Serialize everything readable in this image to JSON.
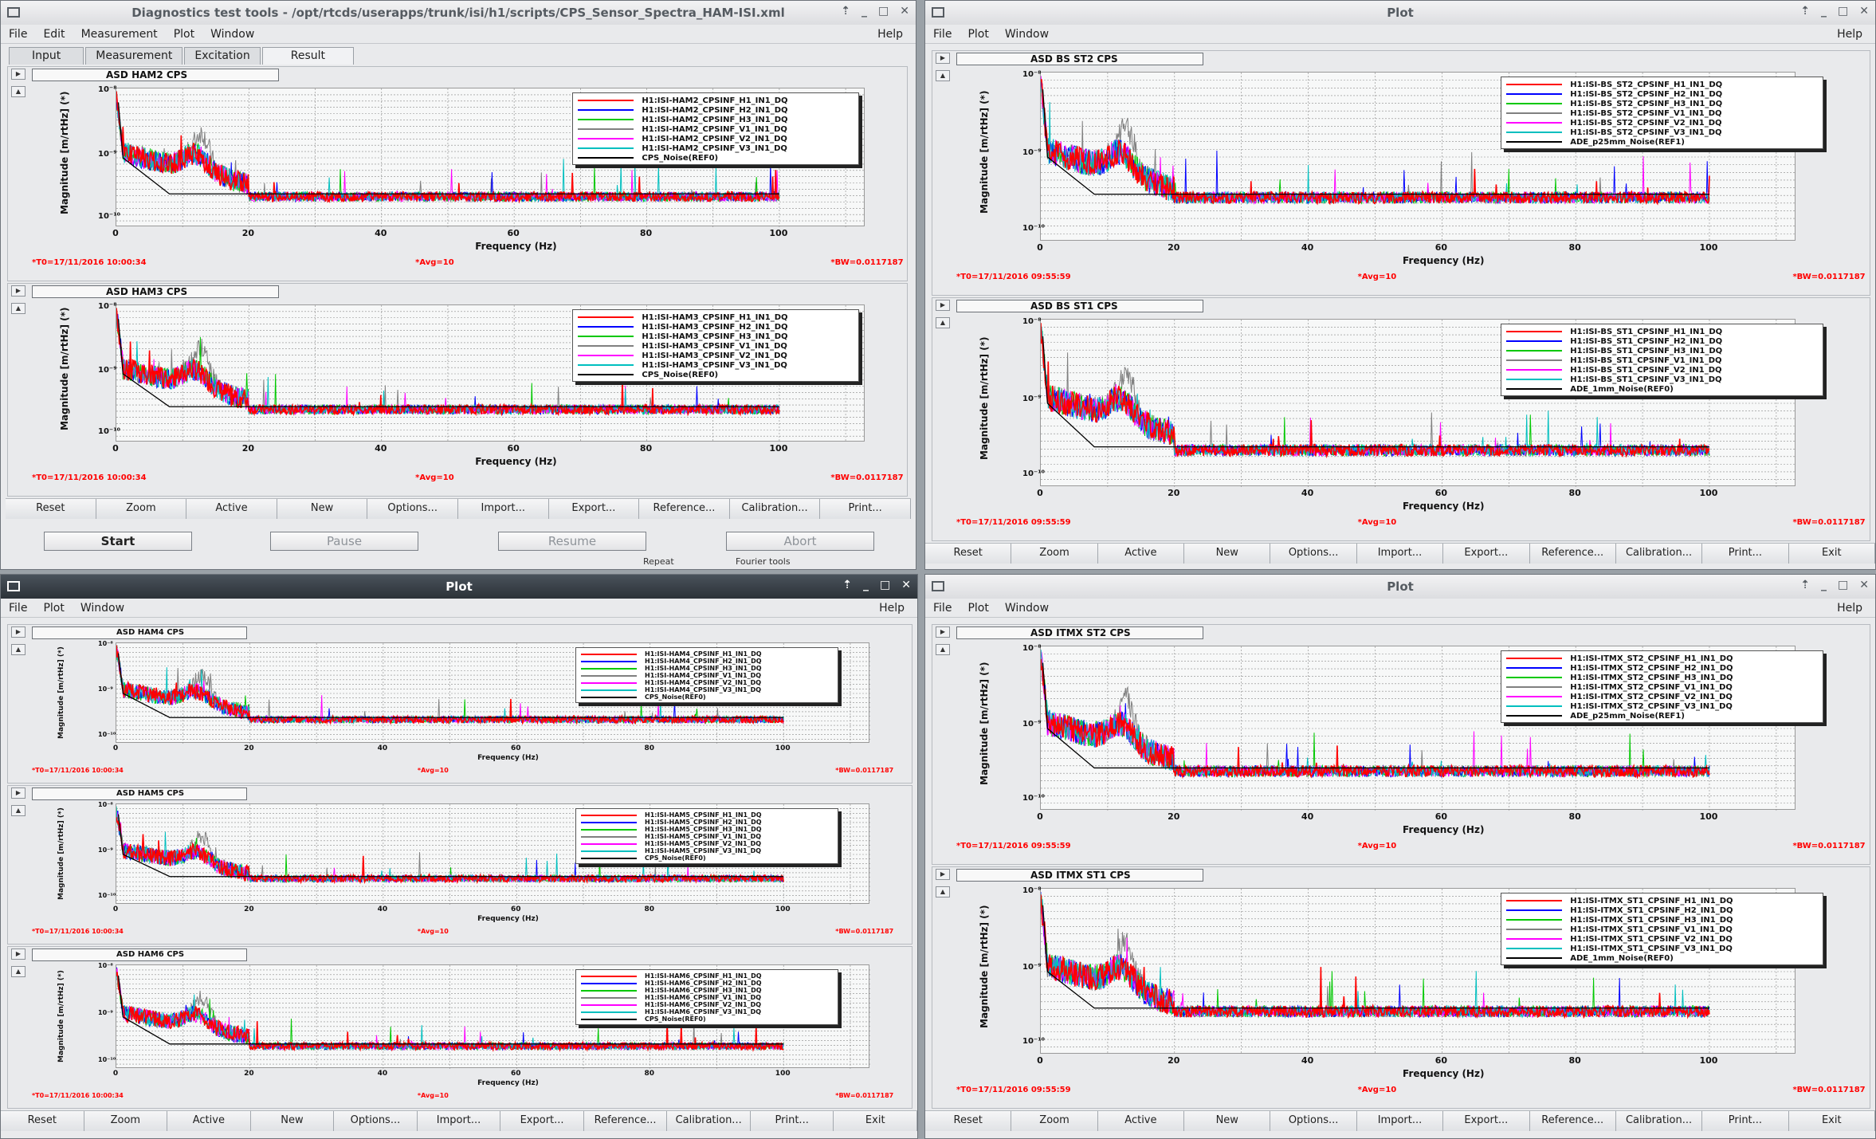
{
  "windows": {
    "dtt": {
      "title": "Diagnostics test tools - /opt/rtcds/userapps/trunk/isi/h1/scripts/CPS_Sensor_Spectra_HAM-ISI.xml",
      "menus": [
        "File",
        "Edit",
        "Measurement",
        "Plot",
        "Window"
      ],
      "help": "Help",
      "tabs": [
        "Input",
        "Measurement",
        "Excitation",
        "Result"
      ],
      "controls": {
        "start": "Start",
        "pause": "Pause",
        "resume": "Resume",
        "abort": "Abort"
      },
      "status": {
        "repeat": "Repeat",
        "fourier": "Fourier tools"
      }
    },
    "plot_tr": {
      "title": "Plot",
      "menus": [
        "File",
        "Plot",
        "Window"
      ],
      "help": "Help"
    },
    "plot_bl": {
      "title": "Plot",
      "menus": [
        "File",
        "Plot",
        "Window"
      ],
      "help": "Help"
    },
    "plot_br": {
      "title": "Plot",
      "menus": [
        "File",
        "Plot",
        "Window"
      ],
      "help": "Help"
    }
  },
  "buttons": {
    "reset": "Reset",
    "zoom": "Zoom",
    "active": "Active",
    "new": "New",
    "options": "Options...",
    "import": "Import...",
    "export": "Export...",
    "reference": "Reference...",
    "calibration": "Calibration...",
    "print": "Print...",
    "exit": "Exit"
  },
  "colors": {
    "series": [
      "#ff0000",
      "#0000ff",
      "#00c800",
      "#808080",
      "#ff00ff",
      "#00bfbf",
      "#000000"
    ],
    "info_text": "#ff0000"
  },
  "chart_data": [
    {
      "id": "ham2",
      "type": "line",
      "title": "ASD HAM2 CPS",
      "xlabel": "Frequency (Hz)",
      "ylabel": "Magnitude [m/rtHz] (*)",
      "xticks": [
        "0",
        "20",
        "40",
        "60",
        "80",
        "100"
      ],
      "yticks": [
        "10⁻⁸",
        "10⁻⁹",
        "10⁻¹⁰"
      ],
      "xlim": [
        0,
        100
      ],
      "series": [
        "H1:ISI-HAM2_CPSINF_H1_IN1_DQ",
        "H1:ISI-HAM2_CPSINF_H2_IN1_DQ",
        "H1:ISI-HAM2_CPSINF_H3_IN1_DQ",
        "H1:ISI-HAM2_CPSINF_V1_IN1_DQ",
        "H1:ISI-HAM2_CPSINF_V2_IN1_DQ",
        "H1:ISI-HAM2_CPSINF_V3_IN1_DQ",
        "CPS_Noise(REF0)"
      ],
      "t0": "*T0=17/11/2016 10:00:34",
      "avg": "*Avg=10",
      "bw": "*BW=0.0117187"
    },
    {
      "id": "ham3",
      "type": "line",
      "title": "ASD HAM3 CPS",
      "xlabel": "Frequency (Hz)",
      "ylabel": "Magnitude [m/rtHz] (*)",
      "xticks": [
        "0",
        "20",
        "40",
        "60",
        "80",
        "100"
      ],
      "yticks": [
        "10⁻⁸",
        "10⁻⁹",
        "10⁻¹⁰"
      ],
      "xlim": [
        0,
        100
      ],
      "series": [
        "H1:ISI-HAM3_CPSINF_H1_IN1_DQ",
        "H1:ISI-HAM3_CPSINF_H2_IN1_DQ",
        "H1:ISI-HAM3_CPSINF_H3_IN1_DQ",
        "H1:ISI-HAM3_CPSINF_V1_IN1_DQ",
        "H1:ISI-HAM3_CPSINF_V2_IN1_DQ",
        "H1:ISI-HAM3_CPSINF_V3_IN1_DQ",
        "CPS_Noise(REF0)"
      ],
      "t0": "*T0=17/11/2016 10:00:34",
      "avg": "*Avg=10",
      "bw": "*BW=0.0117187"
    },
    {
      "id": "bsst2",
      "type": "line",
      "title": "ASD BS ST2 CPS",
      "xlabel": "Frequency (Hz)",
      "ylabel": "Magnitude [m/rtHz] (*)",
      "xticks": [
        "0",
        "20",
        "40",
        "60",
        "80",
        "100"
      ],
      "yticks": [
        "10⁻⁸",
        "10⁻⁹",
        "10⁻¹⁰"
      ],
      "xlim": [
        0,
        100
      ],
      "series": [
        "H1:ISI-BS_ST2_CPSINF_H1_IN1_DQ",
        "H1:ISI-BS_ST2_CPSINF_H2_IN1_DQ",
        "H1:ISI-BS_ST2_CPSINF_H3_IN1_DQ",
        "H1:ISI-BS_ST2_CPSINF_V1_IN1_DQ",
        "H1:ISI-BS_ST2_CPSINF_V2_IN1_DQ",
        "H1:ISI-BS_ST2_CPSINF_V3_IN1_DQ",
        "ADE_p25mm_Noise(REF1)"
      ],
      "t0": "*T0=17/11/2016 09:55:59",
      "avg": "*Avg=10",
      "bw": "*BW=0.0117187"
    },
    {
      "id": "bsst1",
      "type": "line",
      "title": "ASD BS ST1 CPS",
      "xlabel": "Frequency (Hz)",
      "ylabel": "Magnitude [m/rtHz] (*)",
      "xticks": [
        "0",
        "20",
        "40",
        "60",
        "80",
        "100"
      ],
      "yticks": [
        "10⁻⁸",
        "10⁻⁹",
        "10⁻¹⁰"
      ],
      "xlim": [
        0,
        100
      ],
      "series": [
        "H1:ISI-BS_ST1_CPSINF_H1_IN1_DQ",
        "H1:ISI-BS_ST1_CPSINF_H2_IN1_DQ",
        "H1:ISI-BS_ST1_CPSINF_H3_IN1_DQ",
        "H1:ISI-BS_ST1_CPSINF_V1_IN1_DQ",
        "H1:ISI-BS_ST1_CPSINF_V2_IN1_DQ",
        "H1:ISI-BS_ST1_CPSINF_V3_IN1_DQ",
        "ADE_1mm_Noise(REF0)"
      ],
      "t0": "*T0=17/11/2016 09:55:59",
      "avg": "*Avg=10",
      "bw": "*BW=0.0117187"
    },
    {
      "id": "ham4",
      "type": "line",
      "title": "ASD HAM4 CPS",
      "xlabel": "Frequency (Hz)",
      "ylabel": "Magnitude [m/rtHz] (*)",
      "xticks": [
        "0",
        "20",
        "40",
        "60",
        "80",
        "100"
      ],
      "yticks": [
        "10⁻⁸",
        "10⁻⁹",
        "10⁻¹⁰"
      ],
      "xlim": [
        0,
        100
      ],
      "series": [
        "H1:ISI-HAM4_CPSINF_H1_IN1_DQ",
        "H1:ISI-HAM4_CPSINF_H2_IN1_DQ",
        "H1:ISI-HAM4_CPSINF_H3_IN1_DQ",
        "H1:ISI-HAM4_CPSINF_V1_IN1_DQ",
        "H1:ISI-HAM4_CPSINF_V2_IN1_DQ",
        "H1:ISI-HAM4_CPSINF_V3_IN1_DQ",
        "CPS_Noise(REF0)"
      ],
      "t0": "*T0=17/11/2016 10:00:34",
      "avg": "*Avg=10",
      "bw": "*BW=0.0117187"
    },
    {
      "id": "ham5",
      "type": "line",
      "title": "ASD HAM5 CPS",
      "xlabel": "Frequency (Hz)",
      "ylabel": "Magnitude [m/rtHz] (*)",
      "xticks": [
        "0",
        "20",
        "40",
        "60",
        "80",
        "100"
      ],
      "yticks": [
        "10⁻⁸",
        "10⁻⁹",
        "10⁻¹⁰"
      ],
      "xlim": [
        0,
        100
      ],
      "series": [
        "H1:ISI-HAM5_CPSINF_H1_IN1_DQ",
        "H1:ISI-HAM5_CPSINF_H2_IN1_DQ",
        "H1:ISI-HAM5_CPSINF_H3_IN1_DQ",
        "H1:ISI-HAM5_CPSINF_V1_IN1_DQ",
        "H1:ISI-HAM5_CPSINF_V2_IN1_DQ",
        "H1:ISI-HAM5_CPSINF_V3_IN1_DQ",
        "CPS_Noise(REF0)"
      ],
      "t0": "*T0=17/11/2016 10:00:34",
      "avg": "*Avg=10",
      "bw": "*BW=0.0117187"
    },
    {
      "id": "ham6",
      "type": "line",
      "title": "ASD HAM6 CPS",
      "xlabel": "Frequency (Hz)",
      "ylabel": "Magnitude [m/rtHz] (*)",
      "xticks": [
        "0",
        "20",
        "40",
        "60",
        "80",
        "100"
      ],
      "yticks": [
        "10⁻⁸",
        "10⁻⁹",
        "10⁻¹⁰"
      ],
      "xlim": [
        0,
        100
      ],
      "series": [
        "H1:ISI-HAM6_CPSINF_H1_IN1_DQ",
        "H1:ISI-HAM6_CPSINF_H2_IN1_DQ",
        "H1:ISI-HAM6_CPSINF_H3_IN1_DQ",
        "H1:ISI-HAM6_CPSINF_V1_IN1_DQ",
        "H1:ISI-HAM6_CPSINF_V2_IN1_DQ",
        "H1:ISI-HAM6_CPSINF_V3_IN1_DQ",
        "CPS_Noise(REF0)"
      ],
      "t0": "*T0=17/11/2016 10:00:34",
      "avg": "*Avg=10",
      "bw": "*BW=0.0117187"
    },
    {
      "id": "itmxst2",
      "type": "line",
      "title": "ASD ITMX ST2 CPS",
      "xlabel": "Frequency (Hz)",
      "ylabel": "Magnitude [m/rtHz] (*)",
      "xticks": [
        "0",
        "20",
        "40",
        "60",
        "80",
        "100"
      ],
      "yticks": [
        "10⁻⁸",
        "10⁻⁹",
        "10⁻¹⁰"
      ],
      "xlim": [
        0,
        100
      ],
      "series": [
        "H1:ISI-ITMX_ST2_CPSINF_H1_IN1_DQ",
        "H1:ISI-ITMX_ST2_CPSINF_H2_IN1_DQ",
        "H1:ISI-ITMX_ST2_CPSINF_H3_IN1_DQ",
        "H1:ISI-ITMX_ST2_CPSINF_V1_IN1_DQ",
        "H1:ISI-ITMX_ST2_CPSINF_V2_IN1_DQ",
        "H1:ISI-ITMX_ST2_CPSINF_V3_IN1_DQ",
        "ADE_p25mm_Noise(REF1)"
      ],
      "t0": "*T0=17/11/2016 09:55:59",
      "avg": "*Avg=10",
      "bw": "*BW=0.0117187"
    },
    {
      "id": "itmxst1",
      "type": "line",
      "title": "ASD ITMX ST1 CPS",
      "xlabel": "Frequency (Hz)",
      "ylabel": "Magnitude [m/rtHz] (*)",
      "xticks": [
        "0",
        "20",
        "40",
        "60",
        "80",
        "100"
      ],
      "yticks": [
        "10⁻⁸",
        "10⁻⁹",
        "10⁻¹⁰"
      ],
      "xlim": [
        0,
        100
      ],
      "series": [
        "H1:ISI-ITMX_ST1_CPSINF_H1_IN1_DQ",
        "H1:ISI-ITMX_ST1_CPSINF_H2_IN1_DQ",
        "H1:ISI-ITMX_ST1_CPSINF_H3_IN1_DQ",
        "H1:ISI-ITMX_ST1_CPSINF_V1_IN1_DQ",
        "H1:ISI-ITMX_ST1_CPSINF_V2_IN1_DQ",
        "H1:ISI-ITMX_ST1_CPSINF_V3_IN1_DQ",
        "ADE_1mm_Noise(REF0)"
      ],
      "t0": "*T0=17/11/2016 09:55:59",
      "avg": "*Avg=10",
      "bw": "*BW=0.0117187"
    }
  ]
}
